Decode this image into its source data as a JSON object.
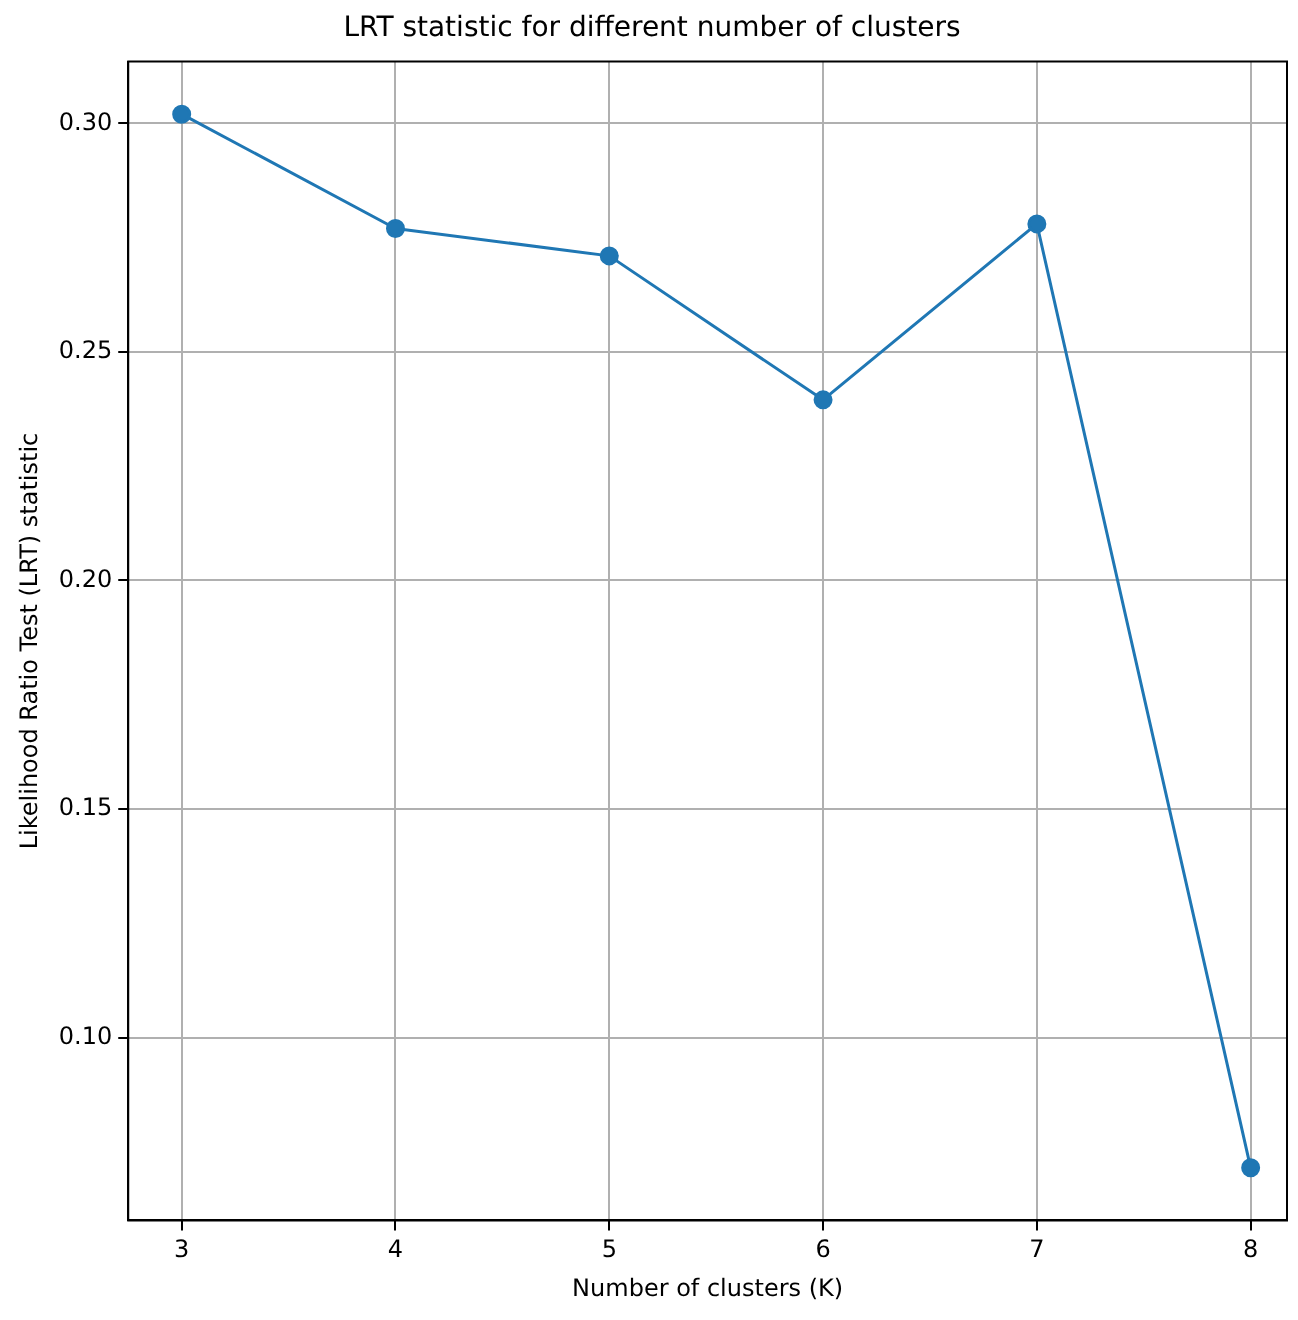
{
  "chart_data": {
    "type": "line",
    "title": "LRT statistic for different number of clusters",
    "xlabel": "Number of clusters (K)",
    "ylabel": "Likelihood Ratio Test (LRT) statistic",
    "x": [
      3,
      4,
      5,
      6,
      7,
      8
    ],
    "series": [
      {
        "color": "#1f77b4",
        "values": [
          0.302,
          0.277,
          0.271,
          0.2395,
          0.278,
          0.0715
        ]
      }
    ],
    "xlim": [
      2.75,
      8.17
    ],
    "xticks": [
      3,
      4,
      5,
      6,
      7,
      8
    ],
    "ylim": [
      0.06,
      0.3135
    ],
    "yticks": [
      {
        "value": 0.1,
        "label": "0.10"
      },
      0.15,
      {
        "value": 0.2,
        "label": "0.20"
      },
      0.25,
      {
        "value": 0.3,
        "label": "0.30"
      }
    ],
    "grid": true,
    "marker": "circle",
    "line_style": "solid",
    "legend": false
  }
}
